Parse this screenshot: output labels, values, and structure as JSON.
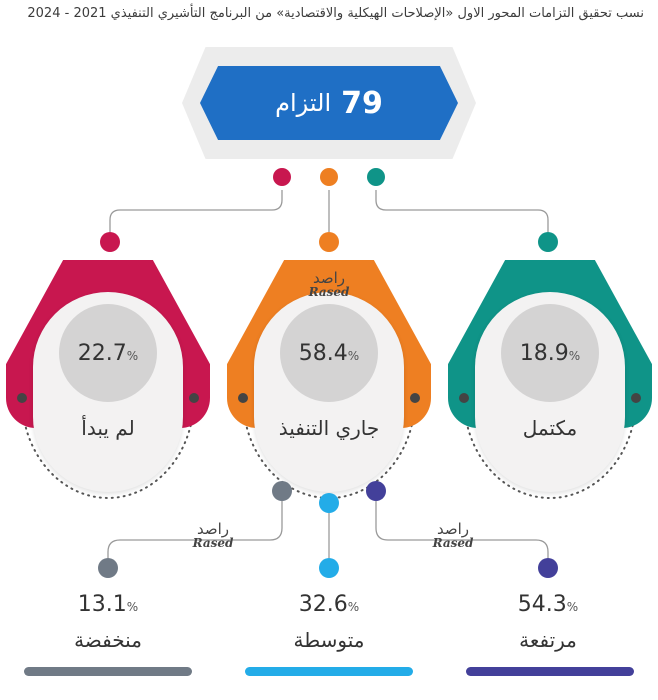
{
  "title": "نسب تحقيق التزامات المحور الاول «الإصلاحات الهيكلية والاقتصادية» من البرنامج التأشيري التنفيذي 2021 - 2024",
  "total": {
    "value": "79",
    "label": "التزام"
  },
  "brand": {
    "ar": "راصد",
    "en": "Rased"
  },
  "colors": {
    "not_started": "#c8174f",
    "in_progress": "#ee7f22",
    "completed": "#0f9488",
    "low": "#707a86",
    "medium": "#23ace8",
    "high": "#43409a",
    "card": "#f3f2f2",
    "circle": "#d4d3d3",
    "total_box": "#1f6fc5"
  },
  "chart_data": [
    {
      "type": "bar",
      "categories": [
        "لم يبدأ",
        "جاري التنفيذ",
        "مكتمل"
      ],
      "values": [
        22.7,
        58.4,
        18.9
      ],
      "unit": "%"
    },
    {
      "type": "bar",
      "categories": [
        "منخفضة",
        "متوسطة",
        "مرتفعة"
      ],
      "values": [
        13.1,
        32.6,
        54.3
      ],
      "unit": "%"
    }
  ]
}
